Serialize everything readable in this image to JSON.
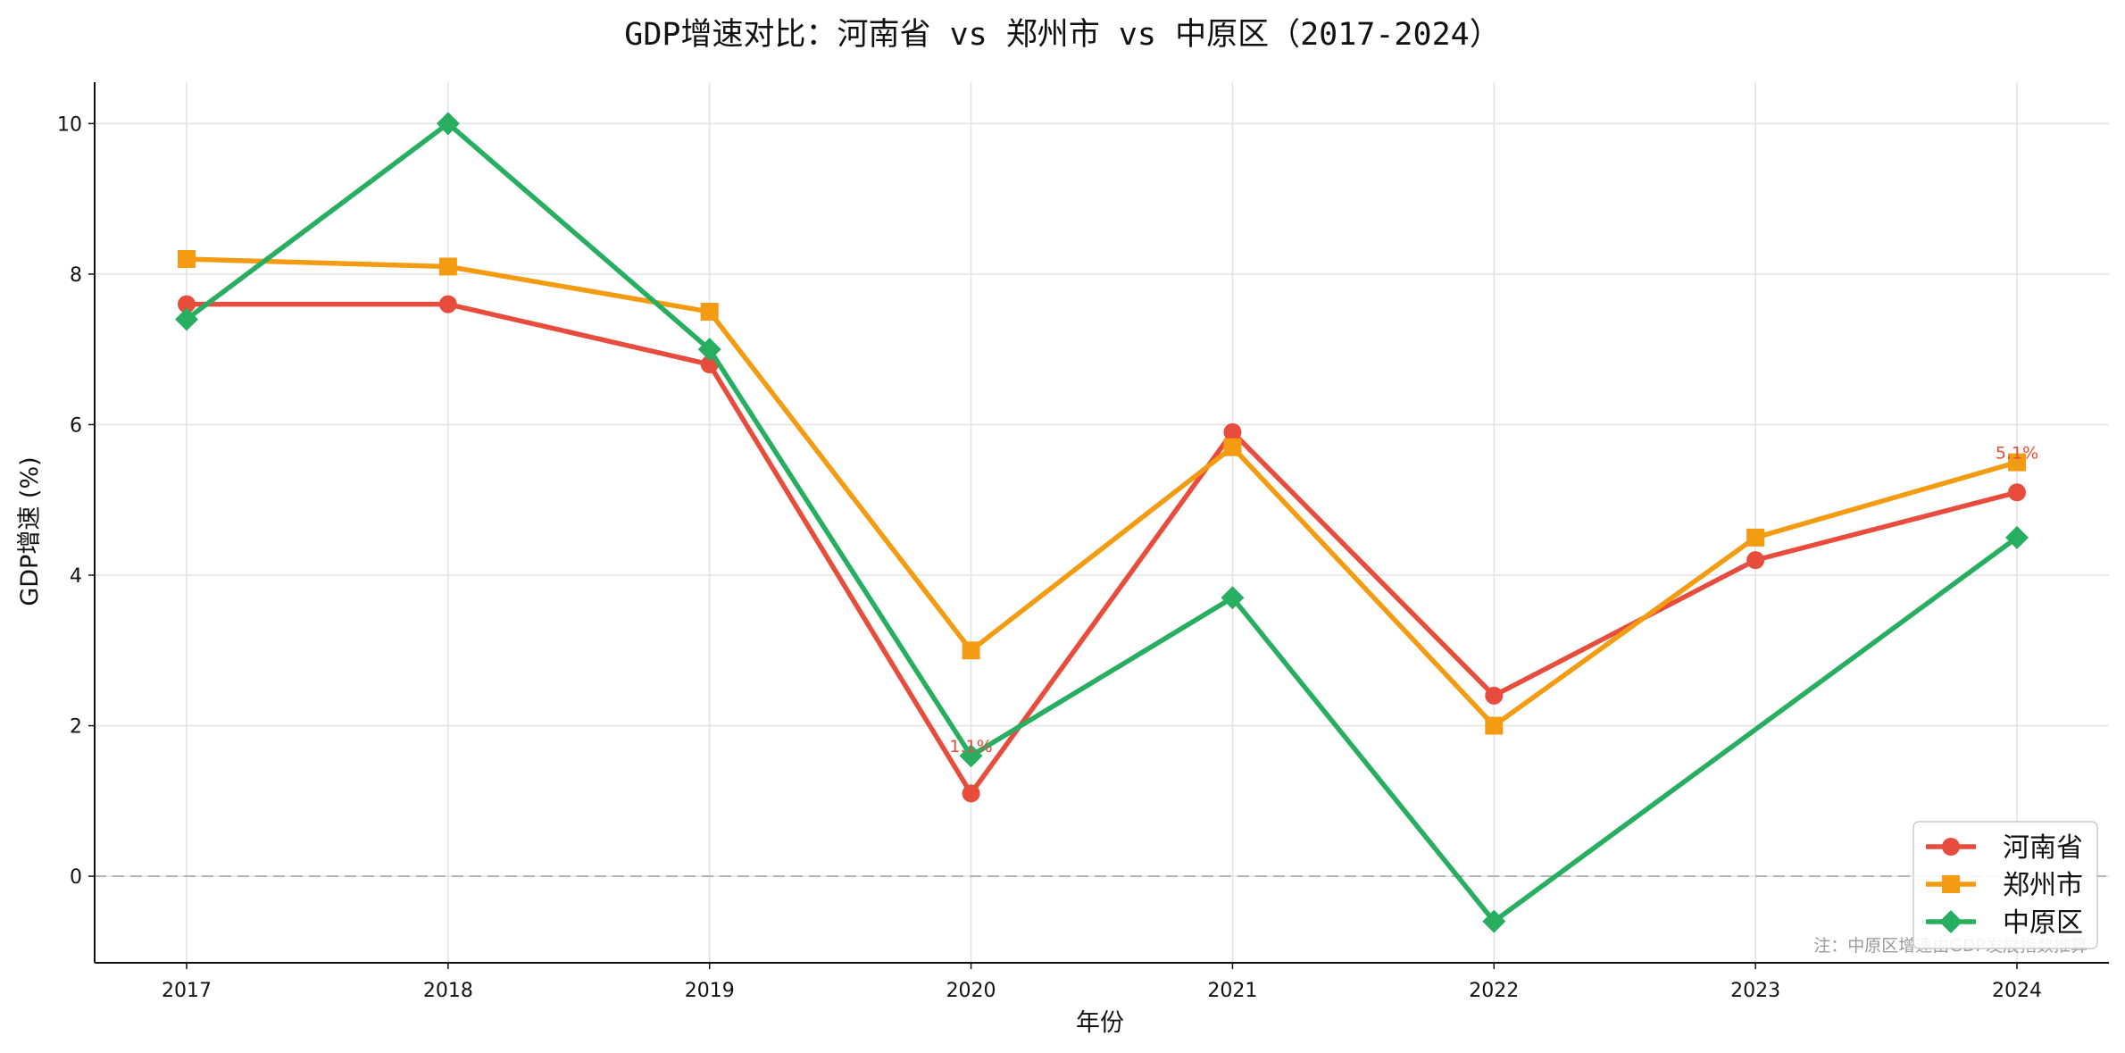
{
  "chart_data": {
    "type": "line",
    "title": "GDP增速对比：河南省 vs 郑州市 vs 中原区（2017-2024）",
    "xlabel": "年份",
    "ylabel": "GDP增速 (%)",
    "x": [
      "2017",
      "2018",
      "2019",
      "2020",
      "2021",
      "2022",
      "2023",
      "2024"
    ],
    "ylim": [
      -1.15,
      10.55
    ],
    "yticks": [
      "0",
      "2",
      "4",
      "6",
      "8",
      "10"
    ],
    "grid": true,
    "reference_line": 0,
    "legend_position": "lower-right",
    "series": [
      {
        "name": "河南省",
        "values": [
          7.6,
          7.6,
          6.8,
          1.1,
          5.9,
          2.4,
          4.2,
          5.1
        ],
        "color": "#e74c3c",
        "marker": "circle"
      },
      {
        "name": "郑州市",
        "values": [
          8.2,
          8.1,
          7.5,
          3.0,
          5.7,
          2.0,
          4.5,
          5.5
        ],
        "color": "#f39c12",
        "marker": "square"
      },
      {
        "name": "中原区",
        "values": [
          7.4,
          10.0,
          7.0,
          1.6,
          3.7,
          -0.6,
          null,
          4.5
        ],
        "color": "#27ae60",
        "marker": "diamond"
      }
    ],
    "annotations": [
      {
        "text": "5.1%",
        "x": "2024",
        "y": 5.5,
        "color": "#e74c3c"
      },
      {
        "text": "1.1%",
        "x": "2020",
        "y": 1.6,
        "color": "#e74c3c"
      }
    ],
    "note": "注：中原区增速由GDP发展指数推算"
  }
}
